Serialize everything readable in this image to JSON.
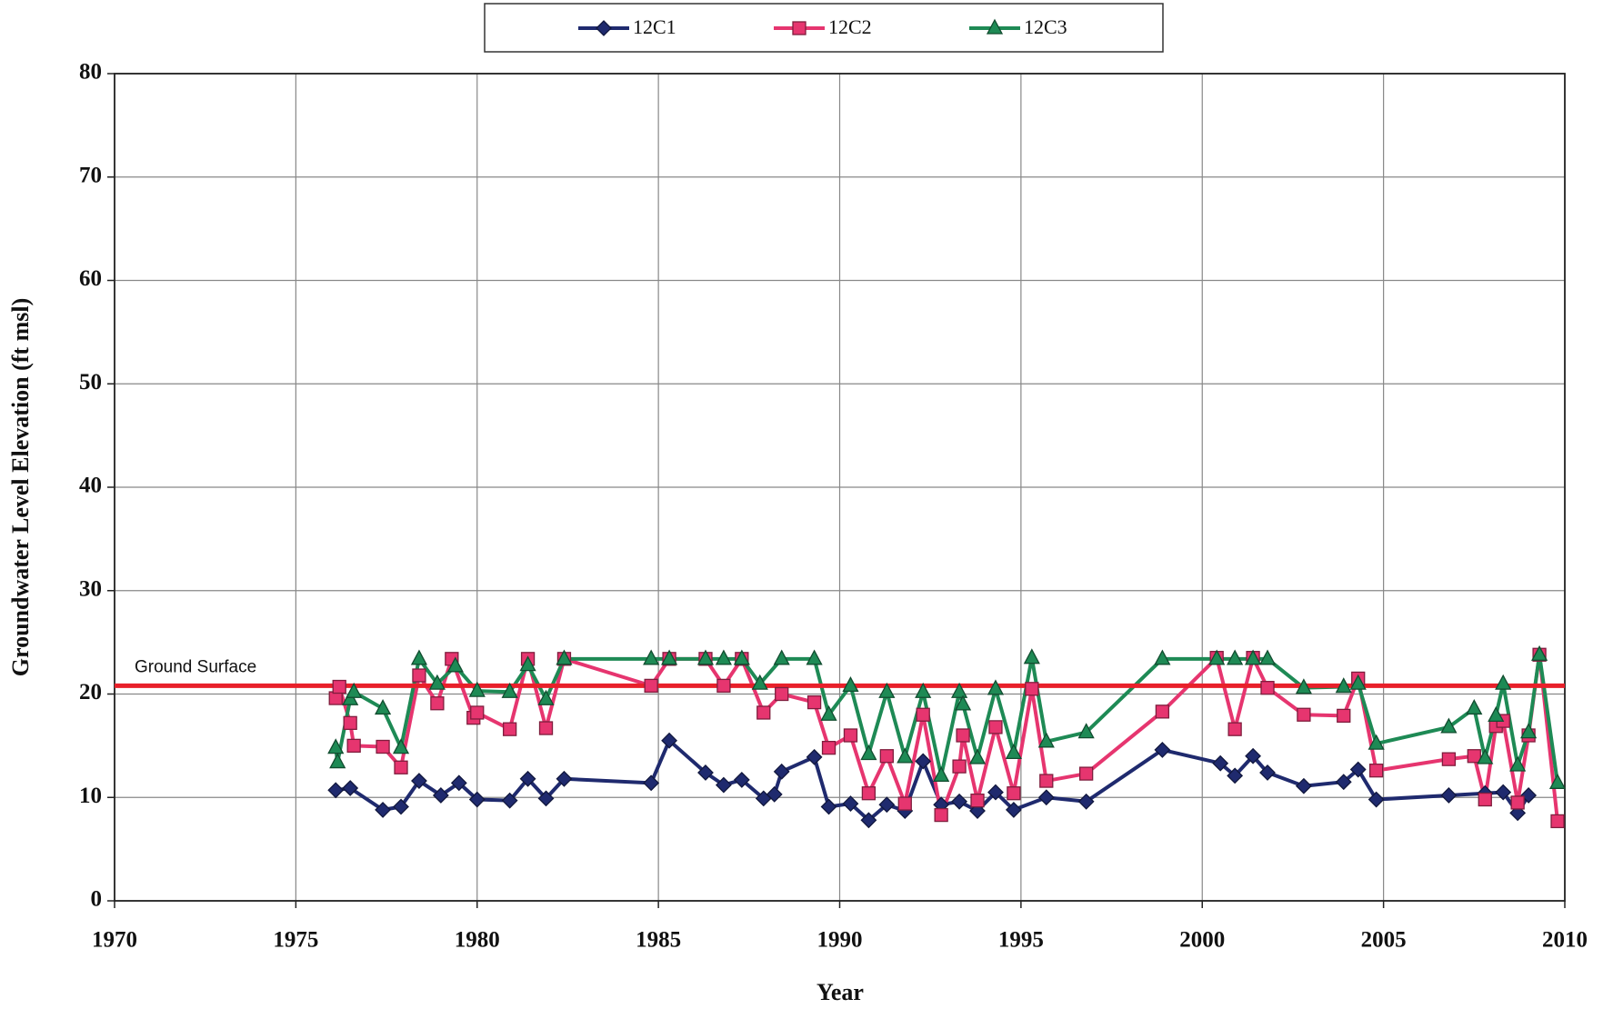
{
  "chart_data": {
    "type": "line",
    "xlabel": "Year",
    "ylabel": "Groundwater Level Elevation (ft msl)",
    "xlim": [
      1970,
      2010
    ],
    "xticks": [
      1970,
      1975,
      1980,
      1985,
      1990,
      1995,
      2000,
      2005,
      2010
    ],
    "ylim": [
      0,
      80
    ],
    "yticks": [
      0,
      10,
      20,
      30,
      40,
      50,
      60,
      70,
      80
    ],
    "grid": true,
    "legend": "top",
    "reference_line": {
      "label": "Ground Surface",
      "value": 20.8,
      "color": "#e8202a"
    },
    "series": [
      {
        "name": "12C1",
        "color": "#1f2a6e",
        "marker": "diamond",
        "x": [
          1976.1,
          1976.5,
          1977.4,
          1977.9,
          1978.4,
          1979.0,
          1979.5,
          1980.0,
          1980.9,
          1981.4,
          1981.9,
          1982.4,
          1984.8,
          1985.3,
          1986.3,
          1986.8,
          1987.3,
          1987.9,
          1988.2,
          1988.4,
          1989.3,
          1989.7,
          1990.3,
          1990.8,
          1991.3,
          1991.8,
          1992.3,
          1992.8,
          1993.3,
          1993.8,
          1994.3,
          1994.8,
          1995.7,
          1996.8,
          1998.9,
          2000.5,
          2000.9,
          2001.4,
          2001.8,
          2002.8,
          2003.9,
          2004.3,
          2004.8,
          2006.8,
          2007.8,
          2008.3,
          2008.7,
          2009.0
        ],
        "values": [
          10.7,
          10.9,
          8.8,
          9.1,
          11.6,
          10.2,
          11.4,
          9.8,
          9.7,
          11.8,
          9.9,
          11.8,
          11.4,
          15.5,
          12.4,
          11.2,
          11.7,
          9.9,
          10.3,
          12.5,
          13.9,
          9.1,
          9.4,
          7.8,
          9.3,
          8.7,
          13.5,
          9.3,
          9.6,
          8.7,
          10.5,
          8.8,
          10.0,
          9.6,
          14.6,
          13.3,
          12.1,
          14.0,
          12.4,
          11.1,
          11.5,
          12.7,
          9.8,
          10.2,
          10.4,
          10.5,
          8.5,
          10.2
        ]
      },
      {
        "name": "12C2",
        "color": "#e6356f",
        "marker": "square",
        "x": [
          1976.1,
          1976.2,
          1976.5,
          1976.6,
          1977.4,
          1977.9,
          1978.4,
          1978.9,
          1979.3,
          1979.9,
          1980.0,
          1980.9,
          1981.4,
          1981.9,
          1982.4,
          1984.8,
          1985.3,
          1986.3,
          1986.8,
          1987.3,
          1987.9,
          1988.4,
          1989.3,
          1989.7,
          1990.3,
          1990.8,
          1991.3,
          1991.8,
          1992.3,
          1992.8,
          1993.3,
          1993.4,
          1993.8,
          1994.3,
          1994.8,
          1995.3,
          1995.7,
          1996.8,
          1998.9,
          2000.4,
          2000.9,
          2001.4,
          2001.8,
          2002.8,
          2003.9,
          2004.3,
          2004.8,
          2006.8,
          2007.5,
          2007.8,
          2008.1,
          2008.3,
          2008.7,
          2009.0,
          2009.3,
          2009.8
        ],
        "values": [
          19.6,
          20.7,
          17.2,
          15.0,
          14.9,
          12.9,
          21.8,
          19.1,
          23.4,
          17.7,
          18.2,
          16.6,
          23.4,
          16.7,
          23.4,
          20.8,
          23.4,
          23.4,
          20.8,
          23.4,
          18.2,
          20.0,
          19.2,
          14.8,
          16.0,
          10.4,
          14.0,
          9.4,
          18.0,
          8.3,
          13.0,
          16.0,
          9.7,
          16.8,
          10.4,
          20.5,
          11.6,
          12.3,
          18.3,
          23.5,
          16.6,
          23.5,
          20.6,
          18.0,
          17.9,
          21.5,
          12.6,
          13.7,
          14.0,
          9.8,
          16.9,
          17.4,
          9.5,
          16.0,
          23.8,
          7.7
        ]
      },
      {
        "name": "12C3",
        "color": "#1e8a55",
        "marker": "triangle",
        "x": [
          1976.1,
          1976.15,
          1976.5,
          1976.6,
          1977.4,
          1977.9,
          1978.4,
          1978.9,
          1979.4,
          1980.0,
          1980.9,
          1981.4,
          1981.9,
          1982.4,
          1984.8,
          1985.3,
          1986.3,
          1986.8,
          1987.3,
          1987.8,
          1988.4,
          1989.3,
          1989.7,
          1990.3,
          1990.8,
          1991.3,
          1991.8,
          1992.3,
          1992.8,
          1993.3,
          1993.4,
          1993.8,
          1994.3,
          1994.8,
          1995.3,
          1995.7,
          1996.8,
          1998.9,
          2000.4,
          2000.9,
          2001.4,
          2001.8,
          2002.8,
          2003.9,
          2004.3,
          2004.8,
          2006.8,
          2007.5,
          2007.8,
          2008.1,
          2008.3,
          2008.7,
          2009.0,
          2009.3,
          2009.8
        ],
        "values": [
          14.8,
          13.4,
          19.5,
          20.2,
          18.6,
          14.8,
          23.4,
          21.0,
          22.7,
          20.3,
          20.2,
          22.8,
          19.5,
          23.4,
          23.4,
          23.4,
          23.4,
          23.4,
          23.4,
          21.0,
          23.4,
          23.4,
          18.0,
          20.8,
          14.2,
          20.2,
          13.9,
          20.2,
          12.1,
          20.2,
          19.0,
          13.8,
          20.5,
          14.3,
          23.5,
          15.4,
          16.3,
          23.4,
          23.4,
          23.4,
          23.4,
          23.4,
          20.6,
          20.7,
          21.0,
          15.2,
          16.8,
          18.6,
          13.8,
          17.9,
          21.0,
          13.1,
          16.3,
          23.8,
          11.4
        ]
      }
    ]
  }
}
